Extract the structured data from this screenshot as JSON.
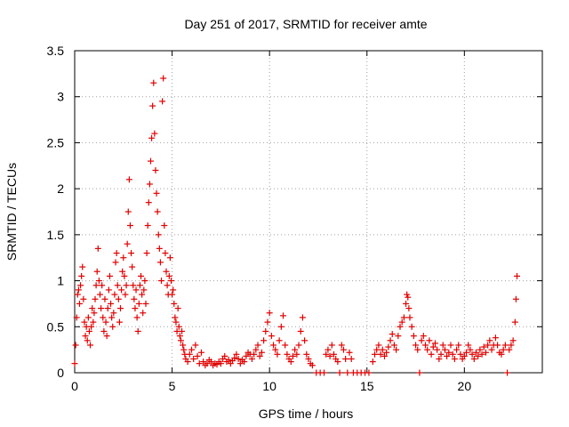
{
  "chart_data": {
    "type": "scatter",
    "title": "Day 251 of 2017, SRMTID for receiver amte",
    "xlabel": "GPS time / hours",
    "ylabel": "SRMTID / TECUs",
    "xlim": [
      0,
      24
    ],
    "ylim": [
      0,
      3.5
    ],
    "xticks": [
      0,
      5,
      10,
      15,
      20
    ],
    "yticks": [
      0,
      0.5,
      1,
      1.5,
      2,
      2.5,
      3,
      3.5
    ],
    "grid": true,
    "marker": "+",
    "series_color": "#e00000",
    "series": [
      {
        "name": "SRMTID",
        "points": [
          [
            0.0,
            0.1
          ],
          [
            0.05,
            0.3
          ],
          [
            0.1,
            0.6
          ],
          [
            0.15,
            0.85
          ],
          [
            0.2,
            0.9
          ],
          [
            0.25,
            0.75
          ],
          [
            0.3,
            0.95
          ],
          [
            0.35,
            1.05
          ],
          [
            0.4,
            1.15
          ],
          [
            0.45,
            0.8
          ],
          [
            0.5,
            0.55
          ],
          [
            0.55,
            0.4
          ],
          [
            0.6,
            0.5
          ],
          [
            0.65,
            0.35
          ],
          [
            0.7,
            0.6
          ],
          [
            0.75,
            0.45
          ],
          [
            0.8,
            0.3
          ],
          [
            0.85,
            0.5
          ],
          [
            0.9,
            0.7
          ],
          [
            0.95,
            0.55
          ],
          [
            1.0,
            0.65
          ],
          [
            1.05,
            0.8
          ],
          [
            1.1,
            0.95
          ],
          [
            1.15,
            1.1
          ],
          [
            1.2,
            1.35
          ],
          [
            1.25,
            1.0
          ],
          [
            1.3,
            0.85
          ],
          [
            1.35,
            0.7
          ],
          [
            1.4,
            0.95
          ],
          [
            1.45,
            0.6
          ],
          [
            1.5,
            0.45
          ],
          [
            1.55,
            0.8
          ],
          [
            1.6,
            0.55
          ],
          [
            1.65,
            0.4
          ],
          [
            1.7,
            0.7
          ],
          [
            1.75,
            0.9
          ],
          [
            1.8,
            1.05
          ],
          [
            1.85,
            0.75
          ],
          [
            1.9,
            0.6
          ],
          [
            1.95,
            0.5
          ],
          [
            2.0,
            0.65
          ],
          [
            2.05,
            0.85
          ],
          [
            2.1,
            1.2
          ],
          [
            2.15,
            1.3
          ],
          [
            2.2,
            0.95
          ],
          [
            2.25,
            0.8
          ],
          [
            2.3,
            0.55
          ],
          [
            2.35,
            0.7
          ],
          [
            2.4,
            0.9
          ],
          [
            2.45,
            1.1
          ],
          [
            2.5,
            1.25
          ],
          [
            2.55,
            1.05
          ],
          [
            2.6,
            0.85
          ],
          [
            2.65,
            0.95
          ],
          [
            2.7,
            1.4
          ],
          [
            2.75,
            1.75
          ],
          [
            2.8,
            2.1
          ],
          [
            2.85,
            1.6
          ],
          [
            2.9,
            1.3
          ],
          [
            2.95,
            1.15
          ],
          [
            3.0,
            0.95
          ],
          [
            3.05,
            0.8
          ],
          [
            3.1,
            0.7
          ],
          [
            3.15,
            0.9
          ],
          [
            3.2,
            0.6
          ],
          [
            3.25,
            0.45
          ],
          [
            3.3,
            0.75
          ],
          [
            3.35,
            0.95
          ],
          [
            3.4,
            1.05
          ],
          [
            3.45,
            0.85
          ],
          [
            3.5,
            0.65
          ],
          [
            3.55,
            0.9
          ],
          [
            3.6,
            1.0
          ],
          [
            3.65,
            0.75
          ],
          [
            3.7,
            1.3
          ],
          [
            3.75,
            1.6
          ],
          [
            3.8,
            1.85
          ],
          [
            3.85,
            2.05
          ],
          [
            3.9,
            2.3
          ],
          [
            3.95,
            2.55
          ],
          [
            4.0,
            2.9
          ],
          [
            4.05,
            3.15
          ],
          [
            4.1,
            2.6
          ],
          [
            4.15,
            2.2
          ],
          [
            4.2,
            1.95
          ],
          [
            4.25,
            1.75
          ],
          [
            4.3,
            1.5
          ],
          [
            4.35,
            1.35
          ],
          [
            4.4,
            1.2
          ],
          [
            4.45,
            1.0
          ],
          [
            4.5,
            2.95
          ],
          [
            4.55,
            3.2
          ],
          [
            4.6,
            1.6
          ],
          [
            4.65,
            1.3
          ],
          [
            4.7,
            1.1
          ],
          [
            4.75,
            0.95
          ],
          [
            4.8,
            0.85
          ],
          [
            4.85,
            1.05
          ],
          [
            4.9,
            1.25
          ],
          [
            4.95,
            1.0
          ],
          [
            5.0,
            0.85
          ],
          [
            5.05,
            0.9
          ],
          [
            5.1,
            0.75
          ],
          [
            5.15,
            0.6
          ],
          [
            5.2,
            0.55
          ],
          [
            5.25,
            0.45
          ],
          [
            5.3,
            0.7
          ],
          [
            5.35,
            0.5
          ],
          [
            5.4,
            0.4
          ],
          [
            5.45,
            0.35
          ],
          [
            5.5,
            0.45
          ],
          [
            5.55,
            0.3
          ],
          [
            5.6,
            0.25
          ],
          [
            5.65,
            0.2
          ],
          [
            5.7,
            0.15
          ],
          [
            5.8,
            0.12
          ],
          [
            5.9,
            0.2
          ],
          [
            6.0,
            0.25
          ],
          [
            6.1,
            0.15
          ],
          [
            6.2,
            0.3
          ],
          [
            6.3,
            0.18
          ],
          [
            6.4,
            0.1
          ],
          [
            6.5,
            0.22
          ],
          [
            6.6,
            0.12
          ],
          [
            6.7,
            0.08
          ],
          [
            6.8,
            0.1
          ],
          [
            6.9,
            0.14
          ],
          [
            7.0,
            0.12
          ],
          [
            7.1,
            0.08
          ],
          [
            7.2,
            0.1
          ],
          [
            7.3,
            0.09
          ],
          [
            7.4,
            0.12
          ],
          [
            7.5,
            0.1
          ],
          [
            7.6,
            0.15
          ],
          [
            7.7,
            0.18
          ],
          [
            7.8,
            0.12
          ],
          [
            7.9,
            0.14
          ],
          [
            8.0,
            0.1
          ],
          [
            8.1,
            0.13
          ],
          [
            8.2,
            0.16
          ],
          [
            8.3,
            0.2
          ],
          [
            8.4,
            0.15
          ],
          [
            8.5,
            0.1
          ],
          [
            8.6,
            0.14
          ],
          [
            8.7,
            0.12
          ],
          [
            8.8,
            0.18
          ],
          [
            8.9,
            0.22
          ],
          [
            9.0,
            0.2
          ],
          [
            9.1,
            0.15
          ],
          [
            9.2,
            0.2
          ],
          [
            9.3,
            0.25
          ],
          [
            9.4,
            0.3
          ],
          [
            9.5,
            0.18
          ],
          [
            9.6,
            0.22
          ],
          [
            9.7,
            0.35
          ],
          [
            9.8,
            0.45
          ],
          [
            9.9,
            0.55
          ],
          [
            10.0,
            0.65
          ],
          [
            10.1,
            0.4
          ],
          [
            10.2,
            0.3
          ],
          [
            10.3,
            0.25
          ],
          [
            10.4,
            0.2
          ],
          [
            10.5,
            0.35
          ],
          [
            10.6,
            0.5
          ],
          [
            10.7,
            0.62
          ],
          [
            10.8,
            0.3
          ],
          [
            10.9,
            0.2
          ],
          [
            11.0,
            0.15
          ],
          [
            11.1,
            0.12
          ],
          [
            11.2,
            0.18
          ],
          [
            11.3,
            0.25
          ],
          [
            11.4,
            0.2
          ],
          [
            11.5,
            0.3
          ],
          [
            11.6,
            0.45
          ],
          [
            11.7,
            0.6
          ],
          [
            11.8,
            0.35
          ],
          [
            11.9,
            0.2
          ],
          [
            12.0,
            0.15
          ],
          [
            12.1,
            0.1
          ],
          [
            12.2,
            0.08
          ],
          [
            12.4,
            0.0
          ],
          [
            12.6,
            0.0
          ],
          [
            12.8,
            0.0
          ],
          [
            12.9,
            0.2
          ],
          [
            13.0,
            0.25
          ],
          [
            13.1,
            0.18
          ],
          [
            13.2,
            0.3
          ],
          [
            13.3,
            0.2
          ],
          [
            13.4,
            0.15
          ],
          [
            13.5,
            0.12
          ],
          [
            13.6,
            0.0
          ],
          [
            13.7,
            0.3
          ],
          [
            13.8,
            0.25
          ],
          [
            13.9,
            0.15
          ],
          [
            14.0,
            0.0
          ],
          [
            14.1,
            0.22
          ],
          [
            14.2,
            0.15
          ],
          [
            14.3,
            0.0
          ],
          [
            14.5,
            0.0
          ],
          [
            14.7,
            0.0
          ],
          [
            14.9,
            0.0
          ],
          [
            15.1,
            0.0
          ],
          [
            15.3,
            0.12
          ],
          [
            15.4,
            0.2
          ],
          [
            15.5,
            0.25
          ],
          [
            15.6,
            0.3
          ],
          [
            15.7,
            0.2
          ],
          [
            15.8,
            0.25
          ],
          [
            15.9,
            0.18
          ],
          [
            16.0,
            0.22
          ],
          [
            16.1,
            0.28
          ],
          [
            16.2,
            0.35
          ],
          [
            16.3,
            0.42
          ],
          [
            16.4,
            0.3
          ],
          [
            16.5,
            0.25
          ],
          [
            16.6,
            0.4
          ],
          [
            16.7,
            0.5
          ],
          [
            16.8,
            0.55
          ],
          [
            16.9,
            0.6
          ],
          [
            17.0,
            0.75
          ],
          [
            17.05,
            0.85
          ],
          [
            17.1,
            0.82
          ],
          [
            17.15,
            0.7
          ],
          [
            17.2,
            0.6
          ],
          [
            17.3,
            0.5
          ],
          [
            17.4,
            0.4
          ],
          [
            17.5,
            0.3
          ],
          [
            17.6,
            0.25
          ],
          [
            17.7,
            0.0
          ],
          [
            17.8,
            0.35
          ],
          [
            17.9,
            0.4
          ],
          [
            18.0,
            0.3
          ],
          [
            18.1,
            0.25
          ],
          [
            18.2,
            0.35
          ],
          [
            18.3,
            0.2
          ],
          [
            18.4,
            0.28
          ],
          [
            18.5,
            0.32
          ],
          [
            18.6,
            0.25
          ],
          [
            18.7,
            0.15
          ],
          [
            18.8,
            0.2
          ],
          [
            18.9,
            0.3
          ],
          [
            19.0,
            0.25
          ],
          [
            19.1,
            0.18
          ],
          [
            19.2,
            0.22
          ],
          [
            19.3,
            0.3
          ],
          [
            19.4,
            0.2
          ],
          [
            19.5,
            0.15
          ],
          [
            19.6,
            0.25
          ],
          [
            19.7,
            0.3
          ],
          [
            19.8,
            0.2
          ],
          [
            19.9,
            0.15
          ],
          [
            20.0,
            0.18
          ],
          [
            20.1,
            0.22
          ],
          [
            20.2,
            0.3
          ],
          [
            20.3,
            0.25
          ],
          [
            20.4,
            0.2
          ],
          [
            20.5,
            0.15
          ],
          [
            20.6,
            0.22
          ],
          [
            20.7,
            0.18
          ],
          [
            20.8,
            0.25
          ],
          [
            20.9,
            0.2
          ],
          [
            21.0,
            0.28
          ],
          [
            21.1,
            0.22
          ],
          [
            21.2,
            0.3
          ],
          [
            21.3,
            0.35
          ],
          [
            21.4,
            0.25
          ],
          [
            21.5,
            0.3
          ],
          [
            21.6,
            0.38
          ],
          [
            21.7,
            0.3
          ],
          [
            21.8,
            0.22
          ],
          [
            21.9,
            0.2
          ],
          [
            22.0,
            0.25
          ],
          [
            22.1,
            0.3
          ],
          [
            22.2,
            0.0
          ],
          [
            22.3,
            0.25
          ],
          [
            22.4,
            0.3
          ],
          [
            22.5,
            0.35
          ],
          [
            22.6,
            0.55
          ],
          [
            22.65,
            0.8
          ],
          [
            22.7,
            1.05
          ]
        ]
      }
    ]
  }
}
